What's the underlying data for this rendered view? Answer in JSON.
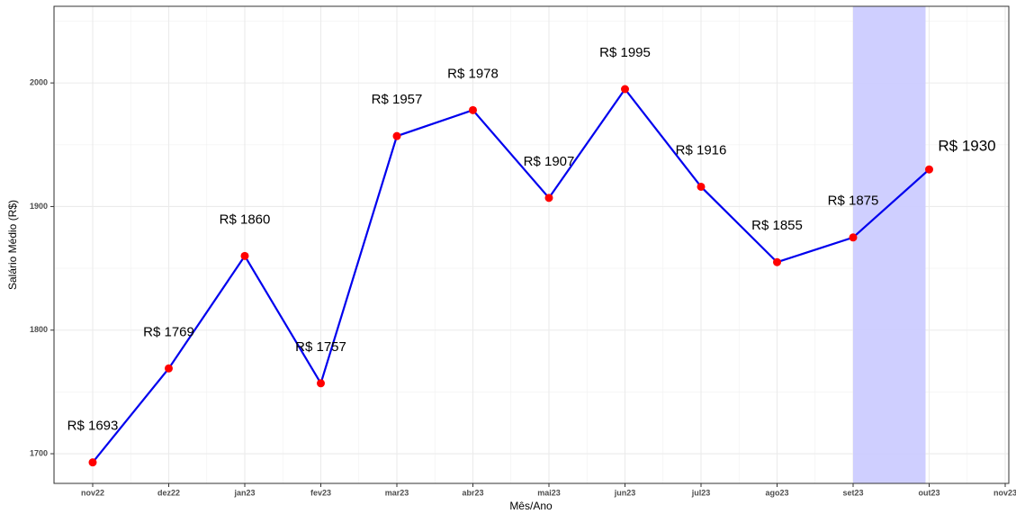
{
  "chart_data": {
    "type": "line",
    "xlabel": "Mês/Ano",
    "ylabel": "Salário Médio (R$)",
    "x": [
      "2022-11",
      "2022-12",
      "2023-01",
      "2023-02",
      "2023-03",
      "2023-04",
      "2023-05",
      "2023-06",
      "2023-07",
      "2023-08",
      "2023-09",
      "2023-10"
    ],
    "series": [
      {
        "name": "Salário Médio",
        "color": "#0000ee",
        "marker_color": "#ff0000",
        "values": [
          1693,
          1769,
          1860,
          1757,
          1957,
          1978,
          1907,
          1995,
          1916,
          1855,
          1875,
          1930
        ],
        "value_labels": [
          "R$ 1693",
          "R$ 1769",
          "R$ 1860",
          "R$ 1757",
          "R$ 1957",
          "R$ 1978",
          "R$ 1907",
          "R$ 1995",
          "R$ 1916",
          "R$ 1855",
          "R$ 1875",
          "R$ 1930"
        ]
      }
    ],
    "highlight": {
      "x": [
        "2023-09",
        "2023-10"
      ],
      "color": "#ccccff"
    },
    "xlim": [
      "2022-11",
      "2023-11"
    ],
    "xticks": [
      {
        "value": "2022-11",
        "label": "nov22"
      },
      {
        "value": "2022-12",
        "label": "dez22"
      },
      {
        "value": "2023-01",
        "label": "jan23"
      },
      {
        "value": "2023-02",
        "label": "fev23"
      },
      {
        "value": "2023-03",
        "label": "mar23"
      },
      {
        "value": "2023-04",
        "label": "abr23"
      },
      {
        "value": "2023-05",
        "label": "mai23"
      },
      {
        "value": "2023-06",
        "label": "jun23"
      },
      {
        "value": "2023-07",
        "label": "jul23"
      },
      {
        "value": "2023-08",
        "label": "ago23"
      },
      {
        "value": "2023-09",
        "label": "set23"
      },
      {
        "value": "2023-10",
        "label": "out23"
      },
      {
        "value": "2023-11",
        "label": "nov23"
      }
    ],
    "ylim": [
      1676,
      2062
    ],
    "yticks": [
      1700,
      1800,
      1900,
      2000
    ],
    "grid": true
  }
}
